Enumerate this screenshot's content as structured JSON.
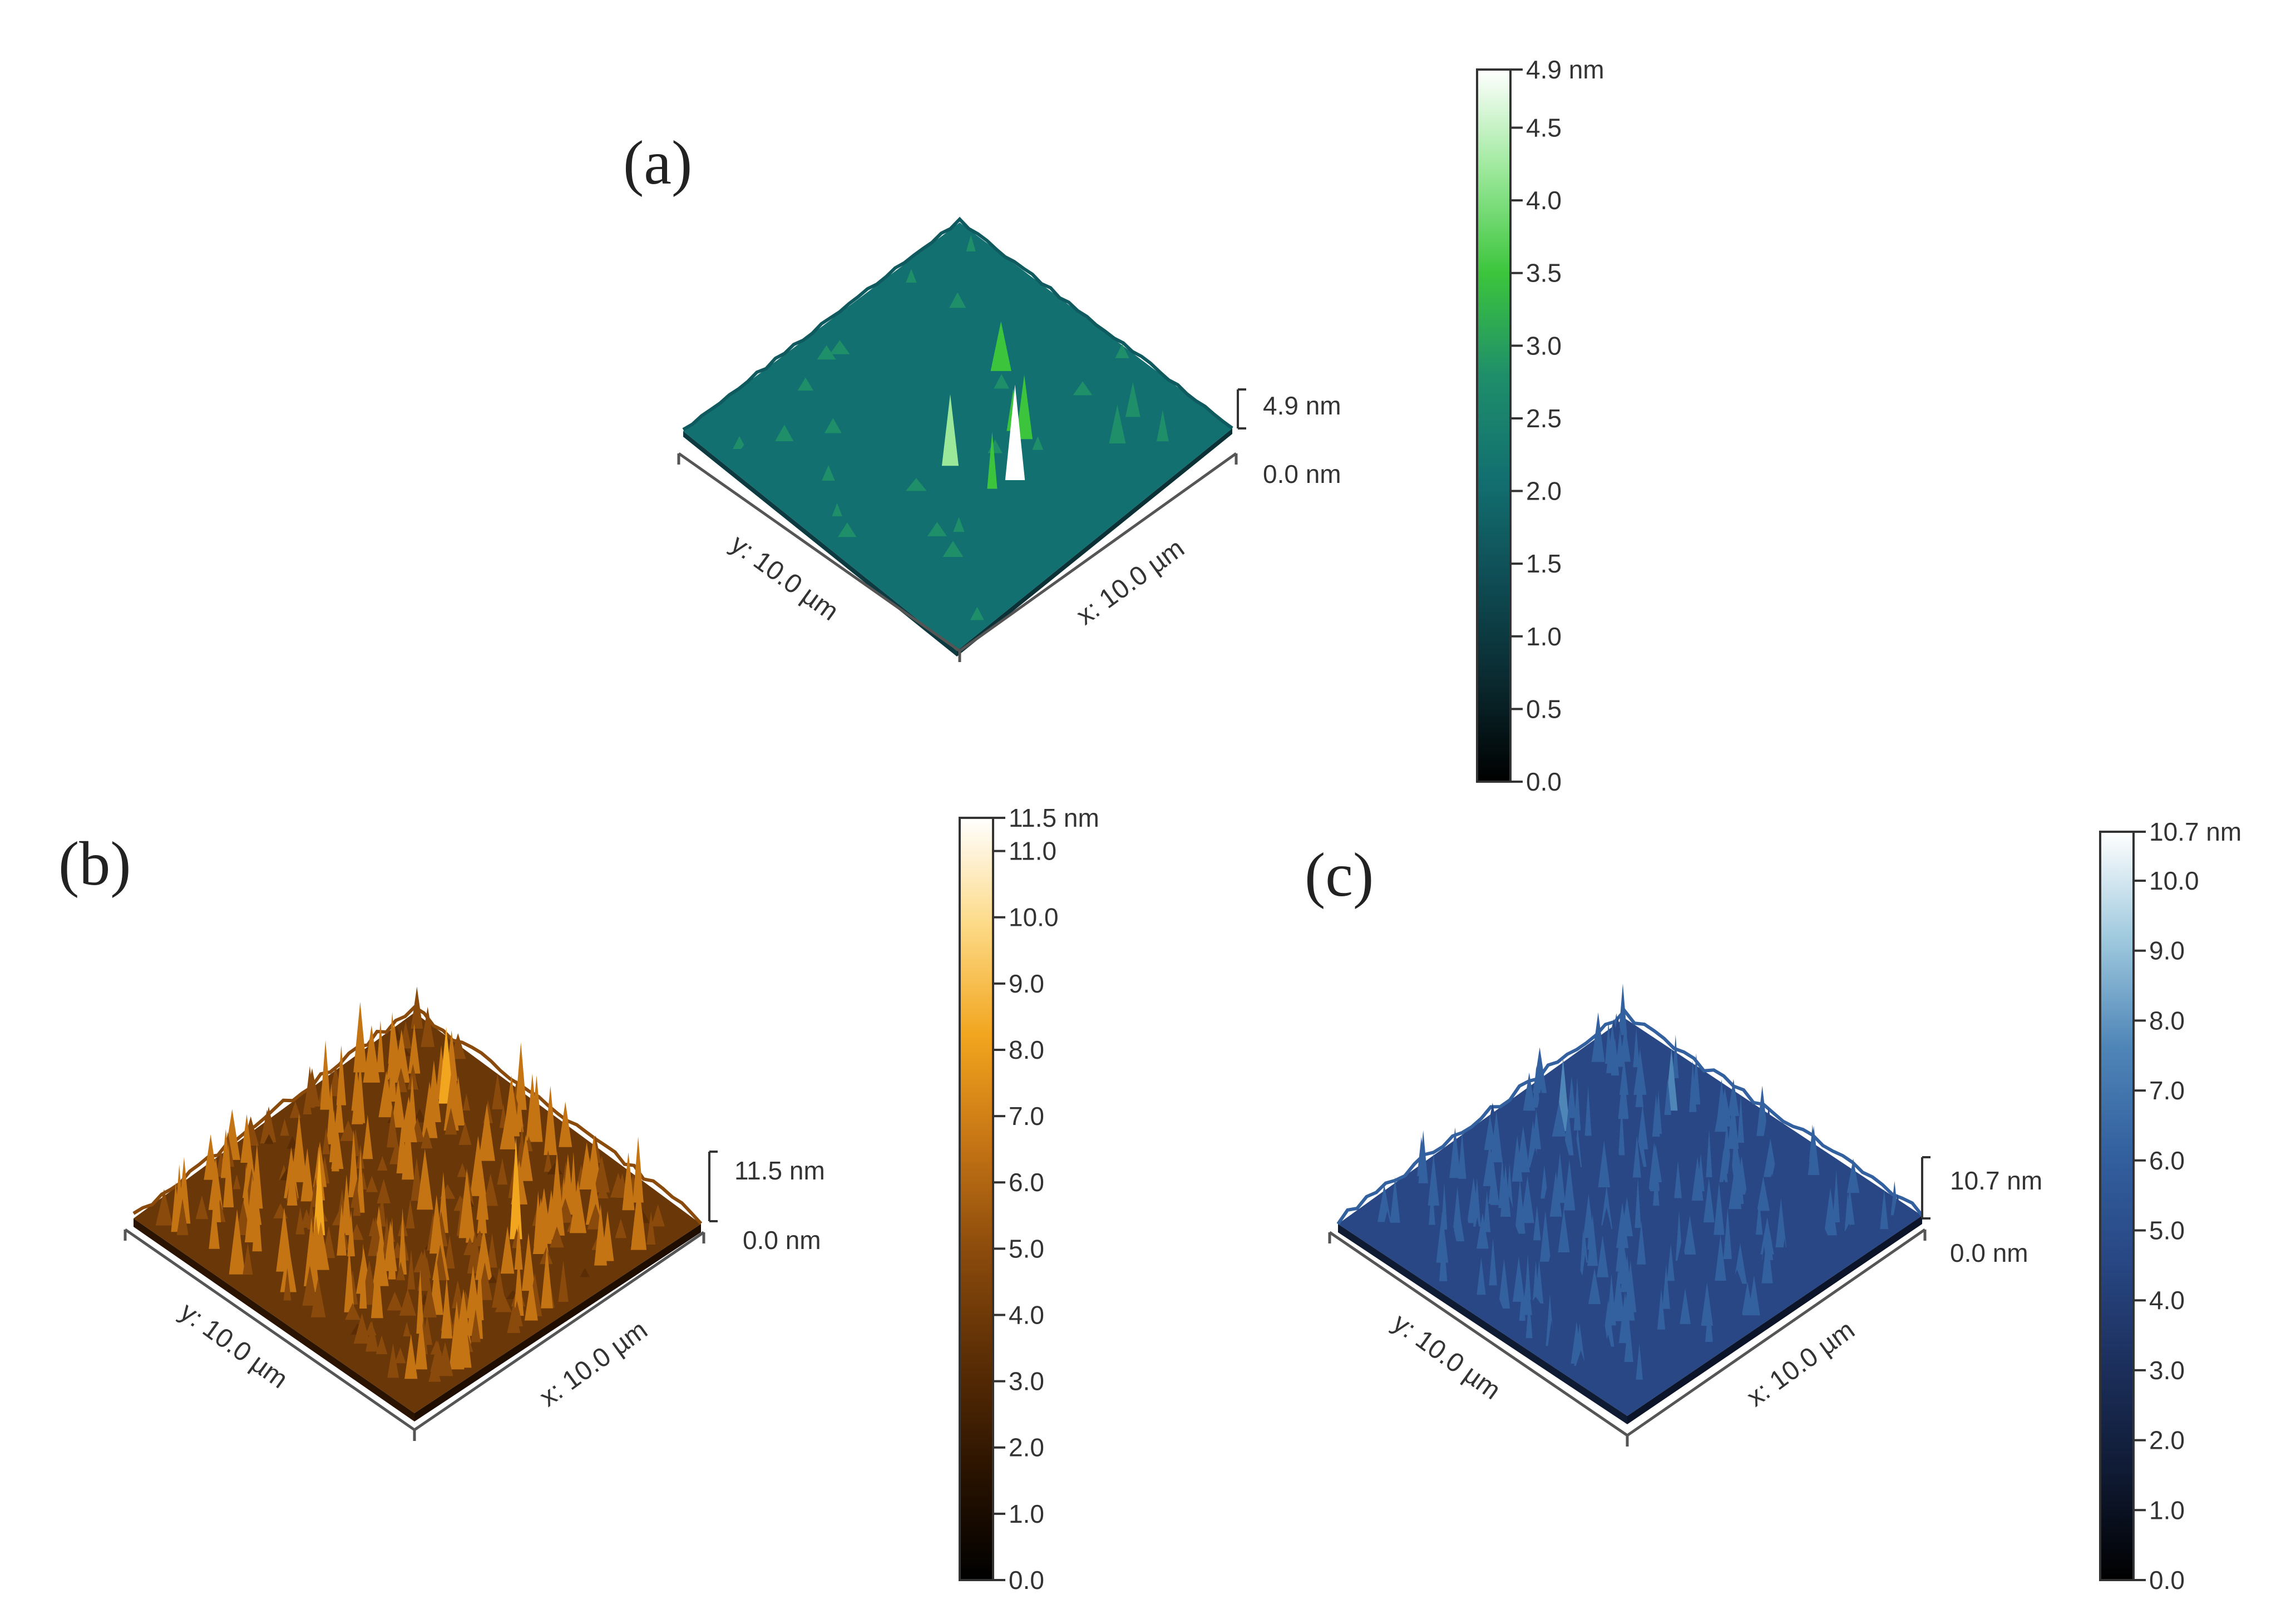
{
  "figure": {
    "panels": [
      {
        "id": "a",
        "letter": "(a)",
        "x_axis_label": "x: 10.0 µm",
        "y_axis_label": "y: 10.0 µm",
        "z_max_label": "4.9 nm",
        "z_min_label": "0.0 nm",
        "colors": [
          "#000000",
          "#0a2a30",
          "#0f4d55",
          "#127070",
          "#1f8f6a",
          "#3cc53c",
          "#9be89a",
          "#ffffff"
        ],
        "surface": {
          "base_level": 0.47,
          "roughness": 0.05,
          "peaks": [
            0.95,
            0.82,
            0.78,
            0.74,
            0.7,
            0.7,
            0.66,
            0.64,
            0.62,
            0.6
          ]
        },
        "colorbar": {
          "top_label": "4.9 nm",
          "ticks": [
            {
              "value": 4.5,
              "label": "4.5"
            },
            {
              "value": 4.0,
              "label": "4.0"
            },
            {
              "value": 3.5,
              "label": "3.5"
            },
            {
              "value": 3.0,
              "label": "3.0"
            },
            {
              "value": 2.5,
              "label": "2.5"
            },
            {
              "value": 2.0,
              "label": "2.0"
            },
            {
              "value": 1.5,
              "label": "1.5"
            },
            {
              "value": 1.0,
              "label": "1.0"
            },
            {
              "value": 0.5,
              "label": "0.5"
            },
            {
              "value": 0.0,
              "label": "0.0"
            }
          ],
          "min": 0.0,
          "max": 4.9
        }
      },
      {
        "id": "b",
        "letter": "(b)",
        "x_axis_label": "x: 10.0 µm",
        "y_axis_label": "y: 10.0 µm",
        "z_max_label": "11.5 nm",
        "z_min_label": "0.0 nm",
        "colors": [
          "#000000",
          "#2a1300",
          "#5a2d05",
          "#8a4a0c",
          "#c57414",
          "#f2a51e",
          "#fcd985",
          "#ffffff"
        ],
        "surface": {
          "base_level": 0.33,
          "roughness": 0.3,
          "peaks": [
            0.78,
            0.7,
            0.66,
            0.62,
            0.6,
            0.58
          ]
        },
        "colorbar": {
          "top_label": "11.5 nm",
          "ticks": [
            {
              "value": 11.0,
              "label": "11.0"
            },
            {
              "value": 10.0,
              "label": "10.0"
            },
            {
              "value": 9.0,
              "label": "9.0"
            },
            {
              "value": 8.0,
              "label": "8.0"
            },
            {
              "value": 7.0,
              "label": "7.0"
            },
            {
              "value": 6.0,
              "label": "6.0"
            },
            {
              "value": 5.0,
              "label": "5.0"
            },
            {
              "value": 4.0,
              "label": "4.0"
            },
            {
              "value": 3.0,
              "label": "3.0"
            },
            {
              "value": 2.0,
              "label": "2.0"
            },
            {
              "value": 1.0,
              "label": "1.0"
            },
            {
              "value": 0.0,
              "label": "0.0"
            }
          ],
          "min": 0.0,
          "max": 11.5
        }
      },
      {
        "id": "c",
        "letter": "(c)",
        "x_axis_label": "x: 10.0 µm",
        "y_axis_label": "y: 10.0 µm",
        "z_max_label": "10.7 nm",
        "z_min_label": "0.0 nm",
        "colors": [
          "#000000",
          "#0f1a33",
          "#1c2f5c",
          "#284784",
          "#33609f",
          "#4f86b8",
          "#9fc9de",
          "#ffffff"
        ],
        "surface": {
          "base_level": 0.36,
          "roughness": 0.25,
          "peaks": [
            0.72,
            0.66,
            0.62,
            0.58,
            0.56
          ]
        },
        "colorbar": {
          "top_label": "10.7 nm",
          "ticks": [
            {
              "value": 10.0,
              "label": "10.0"
            },
            {
              "value": 9.0,
              "label": "9.0"
            },
            {
              "value": 8.0,
              "label": "8.0"
            },
            {
              "value": 7.0,
              "label": "7.0"
            },
            {
              "value": 6.0,
              "label": "6.0"
            },
            {
              "value": 5.0,
              "label": "5.0"
            },
            {
              "value": 4.0,
              "label": "4.0"
            },
            {
              "value": 3.0,
              "label": "3.0"
            },
            {
              "value": 2.0,
              "label": "2.0"
            },
            {
              "value": 1.0,
              "label": "1.0"
            },
            {
              "value": 0.0,
              "label": "0.0"
            }
          ],
          "min": 0.0,
          "max": 10.7
        }
      }
    ]
  }
}
